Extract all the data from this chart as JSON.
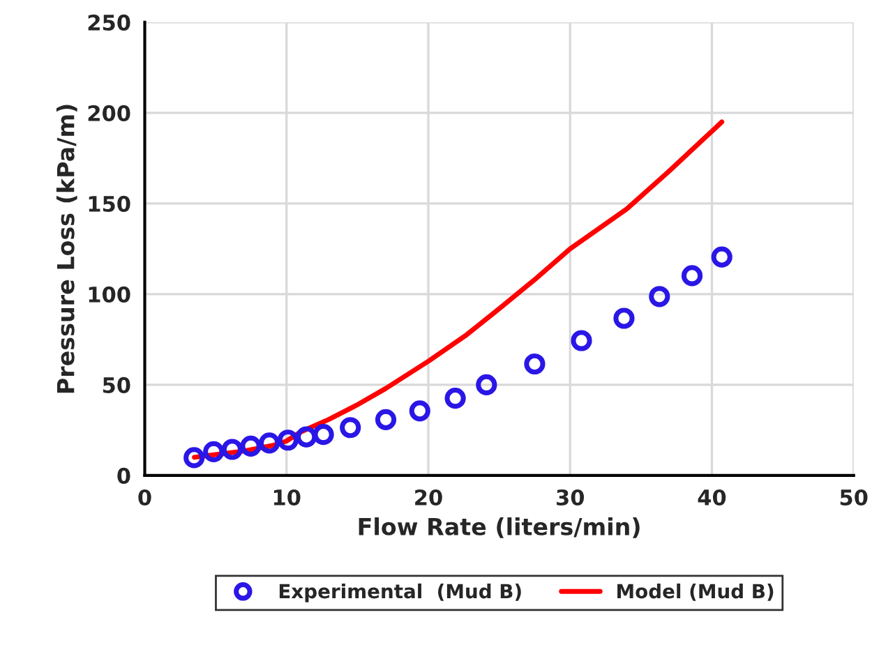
{
  "chart_data": {
    "type": "scatter",
    "xlabel": "Flow Rate (liters/min)",
    "ylabel": "Pressure Loss (kPa/m)",
    "xlim": [
      0,
      50
    ],
    "xticks": [
      0,
      10,
      20,
      30,
      40,
      50
    ],
    "ylim": [
      0,
      250
    ],
    "yticks": [
      0,
      50,
      100,
      150,
      200,
      250
    ],
    "grid": true,
    "legend": "bottom",
    "series": [
      {
        "name": "Experimental  (Mud B)",
        "color": "#2a16e6",
        "marker": "circle",
        "x": [
          3.48,
          4.86,
          6.17,
          7.48,
          8.79,
          10.1,
          11.4,
          12.6,
          14.5,
          17.0,
          19.4,
          21.9,
          24.1,
          27.5,
          30.8,
          33.8,
          36.3,
          38.6,
          40.7
        ],
        "values": [
          9.8,
          13.1,
          14.4,
          16.2,
          17.9,
          19.5,
          21.3,
          22.6,
          26.4,
          30.8,
          35.6,
          42.6,
          50,
          61.5,
          74.4,
          86.7,
          98.7,
          110.2,
          120.5
        ]
      },
      {
        "name": "Model (Mud B)",
        "type": "line",
        "color": "#ff0000",
        "marker": "none",
        "x": [
          3.5,
          5,
          7,
          9,
          10,
          11,
          13,
          15,
          17,
          20,
          22.6,
          25,
          27.5,
          30,
          34,
          37,
          40.7
        ],
        "values": [
          10,
          11.5,
          13.5,
          16.5,
          19,
          24,
          31,
          39,
          48,
          63,
          77,
          92,
          108,
          125,
          147,
          168,
          195
        ]
      }
    ]
  }
}
